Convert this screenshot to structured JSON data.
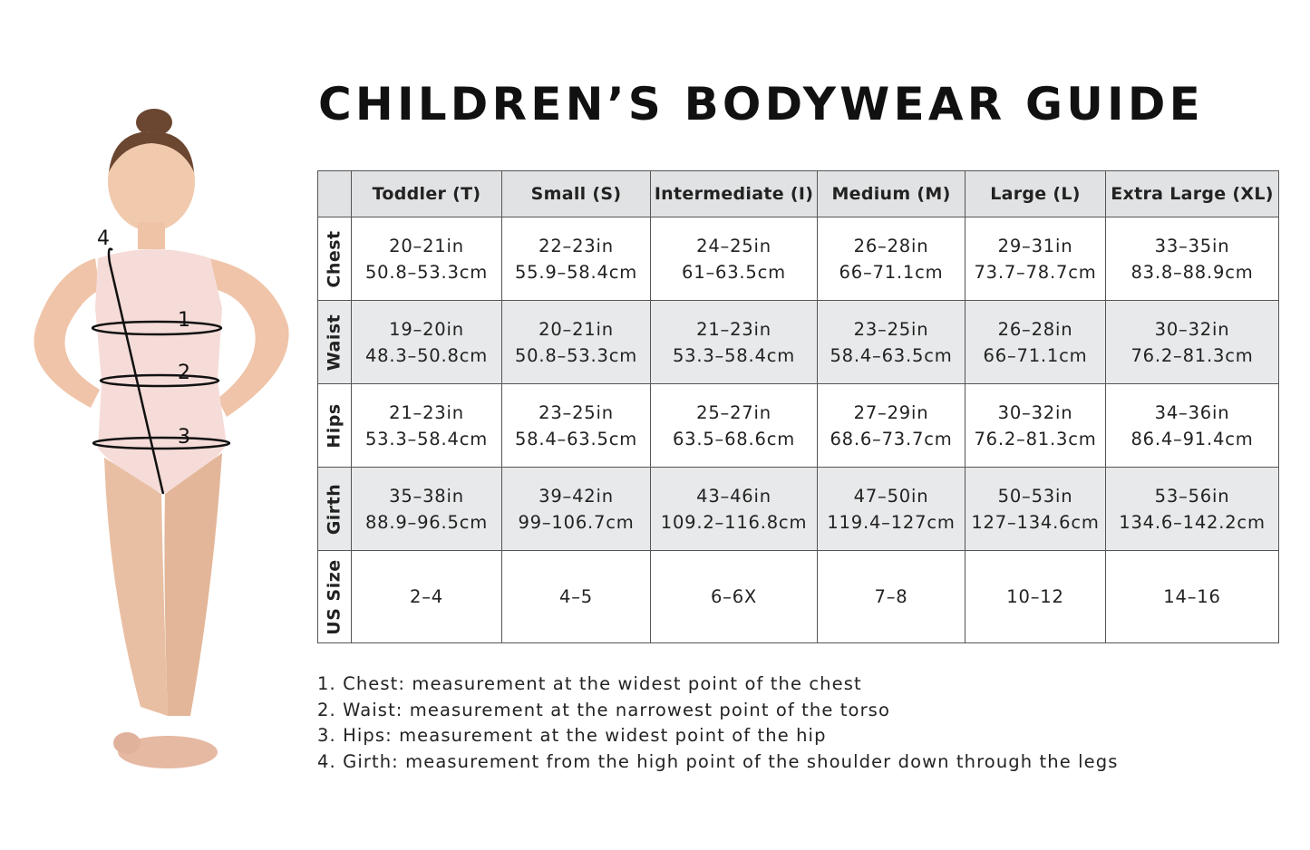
{
  "title": "CHILDREN’S BODYWEAR GUIDE",
  "figure": {
    "markers": [
      "1",
      "2",
      "3",
      "4"
    ]
  },
  "table": {
    "columns": [
      "Toddler (T)",
      "Small (S)",
      "Intermediate (I)",
      "Medium (M)",
      "Large (L)",
      "Extra Large (XL)"
    ],
    "rows": [
      {
        "label": "Chest",
        "cells": [
          [
            "20–21in",
            "50.8–53.3cm"
          ],
          [
            "22–23in",
            "55.9–58.4cm"
          ],
          [
            "24–25in",
            "61–63.5cm"
          ],
          [
            "26–28in",
            "66–71.1cm"
          ],
          [
            "29–31in",
            "73.7–78.7cm"
          ],
          [
            "33–35in",
            "83.8–88.9cm"
          ]
        ]
      },
      {
        "label": "Waist",
        "cells": [
          [
            "19–20in",
            "48.3–50.8cm"
          ],
          [
            "20–21in",
            "50.8–53.3cm"
          ],
          [
            "21–23in",
            "53.3–58.4cm"
          ],
          [
            "23–25in",
            "58.4–63.5cm"
          ],
          [
            "26–28in",
            "66–71.1cm"
          ],
          [
            "30–32in",
            "76.2–81.3cm"
          ]
        ]
      },
      {
        "label": "Hips",
        "cells": [
          [
            "21–23in",
            "53.3–58.4cm"
          ],
          [
            "23–25in",
            "58.4–63.5cm"
          ],
          [
            "25–27in",
            "63.5–68.6cm"
          ],
          [
            "27–29in",
            "68.6–73.7cm"
          ],
          [
            "30–32in",
            "76.2–81.3cm"
          ],
          [
            "34–36in",
            "86.4–91.4cm"
          ]
        ]
      },
      {
        "label": "Girth",
        "cells": [
          [
            "35–38in",
            "88.9–96.5cm"
          ],
          [
            "39–42in",
            "99–106.7cm"
          ],
          [
            "43–46in",
            "109.2–116.8cm"
          ],
          [
            "47–50in",
            "119.4–127cm"
          ],
          [
            "50–53in",
            "127–134.6cm"
          ],
          [
            "53–56in",
            "134.6–142.2cm"
          ]
        ]
      },
      {
        "label": "US Size",
        "cells": [
          [
            "2–4"
          ],
          [
            "4–5"
          ],
          [
            "6–6X"
          ],
          [
            "7–8"
          ],
          [
            "10–12"
          ],
          [
            "14–16"
          ]
        ]
      }
    ]
  },
  "notes": [
    "1. Chest: measurement at the widest point of the chest",
    "2. Waist: measurement at the narrowest point of the torso",
    "3. Hips: measurement at the widest point of the hip",
    "4. Girth: measurement from the high point of the shoulder down through the legs"
  ]
}
